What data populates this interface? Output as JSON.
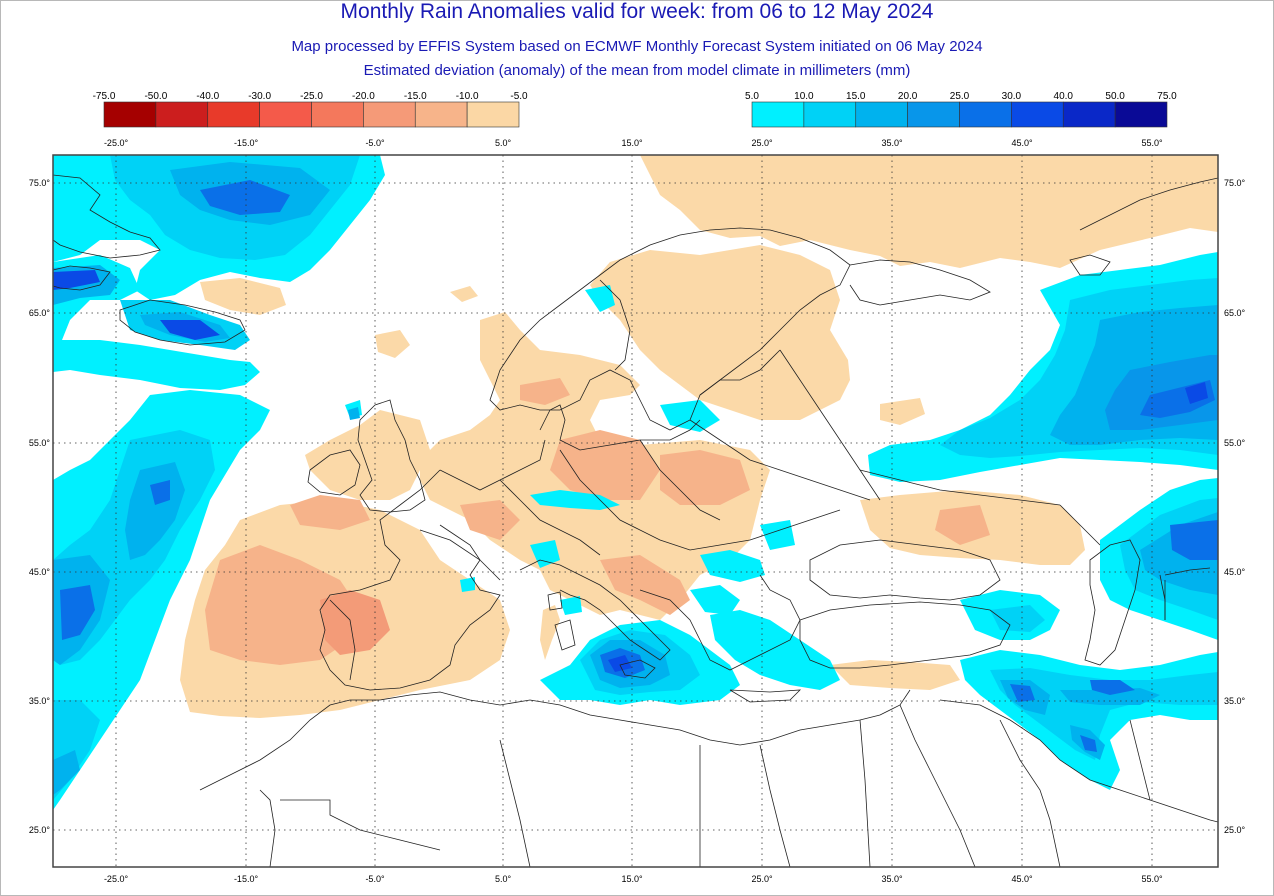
{
  "title": "Monthly Rain Anomalies valid for week: from 06 to 12 May 2024",
  "subtitle_1": "Map processed by EFFIS System based on ECMWF Monthly Forecast System initiated on 06 May 2024",
  "subtitle_2": "Estimated deviation (anomaly) of the mean from model climate in millimeters (mm)",
  "legend_negative": {
    "ticks": [
      "-75.0",
      "-50.0",
      "-40.0",
      "-30.0",
      "-25.0",
      "-20.0",
      "-15.0",
      "-10.0",
      "-5.0"
    ],
    "colors": [
      "#a50000",
      "#cc1e1e",
      "#e83a2a",
      "#f45a4a",
      "#f4785c",
      "#f59a78",
      "#f7b48a",
      "#fbd7a5"
    ]
  },
  "legend_positive": {
    "ticks": [
      "5.0",
      "10.0",
      "15.0",
      "20.0",
      "25.0",
      "30.0",
      "40.0",
      "50.0",
      "75.0"
    ],
    "colors": [
      "#00f0ff",
      "#00d2f6",
      "#00b2ee",
      "#0896ea",
      "#0a70e8",
      "#0a4ae6",
      "#0a28c8",
      "#0a0a96"
    ]
  },
  "longitude_labels": [
    "-25.0°",
    "-15.0°",
    "-5.0°",
    "5.0°",
    "15.0°",
    "25.0°",
    "35.0°",
    "45.0°",
    "55.0°"
  ],
  "latitude_labels": [
    "75.0°",
    "65.0°",
    "55.0°",
    "45.0°",
    "35.0°",
    "25.0°"
  ]
}
